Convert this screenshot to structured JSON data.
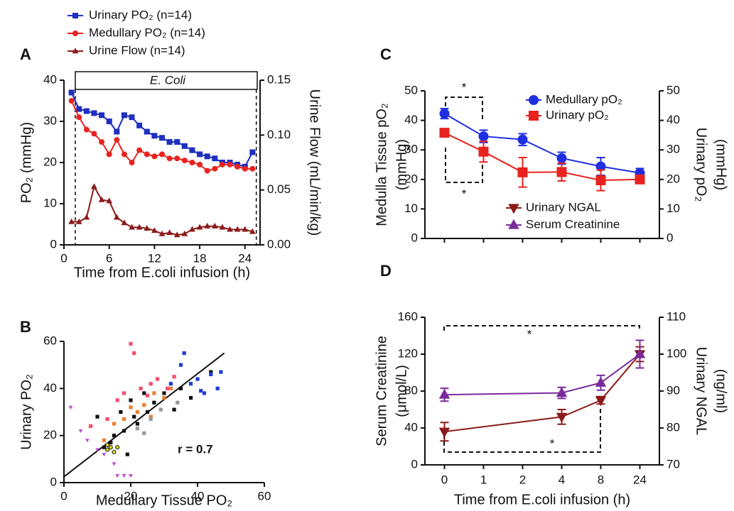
{
  "chart_data": [
    {
      "type": "line",
      "panel": "A",
      "xlabel": "Time from E.coli infusion (h)",
      "ylabel": [
        "PO₂ (mmHg)"
      ],
      "y2label": [
        "Urine Flow (mL/min/kg)"
      ],
      "annotation": "E. Coli",
      "infusion_window": [
        1.5,
        25.5
      ],
      "x": [
        1,
        2,
        3,
        4,
        5,
        6,
        7,
        8,
        9,
        10,
        11,
        12,
        13,
        14,
        15,
        16,
        17,
        18,
        19,
        20,
        21,
        22,
        23,
        24,
        25
      ],
      "xlim": [
        0,
        26
      ],
      "xticks": [
        0,
        6,
        12,
        18,
        24
      ],
      "ylim": [
        0,
        40
      ],
      "yticks": [
        0,
        10,
        20,
        30,
        40
      ],
      "y2lim": [
        0,
        0.15
      ],
      "y2ticks": [
        {
          "value": 0,
          "label": "0.00"
        },
        0.05,
        {
          "value": 0.1,
          "label": "0.10"
        },
        0.15
      ],
      "series": [
        {
          "name": "Urinary PO₂ (n=14)",
          "color": "#1f2fbf",
          "marker": "square",
          "values": [
            37,
            33,
            32.5,
            32,
            31.5,
            30,
            27.5,
            31.5,
            31,
            29,
            27.5,
            26.5,
            26,
            25,
            25,
            24,
            23,
            22,
            21.5,
            21,
            20,
            20,
            19.5,
            19,
            22.5
          ]
        },
        {
          "name": "Medullary PO₂ (n=14)",
          "color": "#e8231f",
          "marker": "circle",
          "values": [
            35,
            31,
            28,
            27,
            25,
            22,
            25.5,
            22,
            20,
            23,
            22,
            21.5,
            22,
            21,
            21,
            20.5,
            20,
            19.5,
            18,
            18.5,
            19.5,
            19.5,
            19,
            18.5,
            18.5
          ]
        },
        {
          "name": "Urine Flow (n=14)",
          "color": "#8b1a1a",
          "marker": "triangle-up",
          "axis": "y2",
          "values": [
            0.021,
            0.021,
            0.025,
            0.053,
            0.041,
            0.04,
            0.025,
            0.02,
            0.016,
            0.016,
            0.015,
            0.013,
            0.01,
            0.011,
            0.009,
            0.01,
            0.014,
            0.016,
            0.017,
            0.017,
            0.016,
            0.014,
            0.014,
            0.014,
            0.012
          ]
        }
      ]
    },
    {
      "type": "scatter",
      "panel": "B",
      "xlabel": "Medullary Tissue PO₂",
      "ylabel": [
        "Urinary PO₂"
      ],
      "annotation": "r = 0.7",
      "xlim": [
        0,
        60
      ],
      "xticks": [
        0,
        20,
        40,
        60
      ],
      "ylim": [
        0,
        60
      ],
      "yticks": [
        0,
        20,
        40,
        60
      ],
      "fit": {
        "x": [
          0,
          48
        ],
        "y": [
          2.5,
          55
        ]
      },
      "series": [
        {
          "color": "#111111",
          "marker": "square",
          "x": [
            10,
            12,
            15,
            17,
            18,
            20,
            22,
            24,
            25,
            27,
            30,
            33,
            35,
            38,
            44,
            14,
            19,
            21
          ],
          "values": [
            28,
            15,
            20,
            30,
            22,
            35,
            25,
            38,
            30,
            34,
            38,
            31,
            40,
            36,
            47,
            17,
            12,
            28
          ]
        },
        {
          "color": "#f0506e",
          "marker": "square",
          "x": [
            8,
            13,
            16,
            18,
            20,
            21,
            23,
            26,
            28,
            31,
            33,
            25
          ],
          "values": [
            24,
            27,
            35,
            38,
            59,
            55,
            40,
            42,
            44,
            40,
            45,
            37
          ]
        },
        {
          "color": "#f07d2d",
          "marker": "square",
          "x": [
            12,
            15,
            18,
            22,
            24,
            27,
            30,
            32,
            20,
            26
          ],
          "values": [
            18,
            25,
            27,
            30,
            33,
            38,
            36,
            40,
            32,
            28
          ]
        },
        {
          "color": "#1e3cdc",
          "marker": "square",
          "x": [
            32,
            35,
            38,
            40,
            42,
            44,
            46,
            47,
            36,
            41
          ],
          "values": [
            42,
            50,
            42,
            44,
            38,
            46,
            40,
            47,
            55,
            39
          ]
        },
        {
          "color": "#c04ccc",
          "marker": "triangle-down",
          "x": [
            2,
            5,
            7,
            10,
            12,
            16,
            18,
            20,
            15
          ],
          "values": [
            32,
            22,
            18,
            14,
            12,
            3,
            3,
            3,
            8
          ]
        },
        {
          "color": "#d8d020",
          "marker": "circle",
          "x": [
            13,
            14,
            15,
            13,
            16
          ],
          "values": [
            14,
            15,
            13,
            16,
            15
          ]
        },
        {
          "color": "#999999",
          "marker": "square",
          "x": [
            22,
            26,
            29,
            34,
            24
          ],
          "values": [
            23,
            27,
            31,
            34,
            21
          ]
        }
      ]
    },
    {
      "type": "line",
      "panel": "C",
      "ylabel": [
        "Medulla Tissue pO₂",
        "(mmHg)"
      ],
      "y2label": [
        "Urinary pO₂",
        "(mmHg)"
      ],
      "annotations": [
        "*",
        "*"
      ],
      "categories": [
        null,
        null,
        null,
        null,
        null,
        null
      ],
      "ylim": [
        0,
        50
      ],
      "yticks": [
        0,
        10,
        20,
        30,
        40,
        50
      ],
      "y2lim": [
        0,
        50
      ],
      "y2ticks": [
        0,
        10,
        20,
        30,
        40,
        50
      ],
      "series": [
        {
          "name": "Medullary pO₂",
          "color": "#1f2fe0",
          "marker": "circle",
          "values": [
            42.3,
            34.6,
            33.5,
            27.2,
            24.4,
            22.2
          ],
          "errors": [
            1.7,
            2.1,
            2,
            2,
            3,
            1.5
          ]
        },
        {
          "name": "Urinary pO₂",
          "color": "#e8231f",
          "marker": "square",
          "axis": "y2",
          "values": [
            35.8,
            29.4,
            22.4,
            22.5,
            19.7,
            20
          ],
          "errors": [
            1.2,
            3.5,
            5,
            3,
            3.5,
            1.3
          ]
        }
      ]
    },
    {
      "type": "line",
      "panel": "D",
      "xlabel": "Time from E.coli infusion (h)",
      "ylabel": [
        "Serum Creatinine",
        "(μmol/L)"
      ],
      "y2label": [
        "Urinary NGAL",
        "(ng/ml)"
      ],
      "annotations": [
        "*",
        "*"
      ],
      "categories": [
        "0",
        "1",
        "2",
        "4",
        "8",
        "24"
      ],
      "ylim": [
        0,
        160
      ],
      "yticks": [
        0,
        40,
        80,
        120,
        160
      ],
      "y2lim": [
        70,
        110
      ],
      "y2ticks": [
        70,
        80,
        90,
        100,
        110
      ],
      "series": [
        {
          "name": "Urinary NGAL",
          "color": "#8b1a1a",
          "marker": "triangle-down",
          "axis": "y2",
          "x": [
            "0",
            "4",
            "8",
            "24"
          ],
          "values": [
            79,
            83,
            87.5,
            100
          ],
          "errors": [
            2.5,
            2,
            1,
            2
          ]
        },
        {
          "name": "Serum Creatinine",
          "color": "#7b2a9b",
          "marker": "triangle-up",
          "x": [
            "0",
            "4",
            "8",
            "24"
          ],
          "values": [
            76,
            78,
            89,
            120
          ],
          "errors": [
            7,
            6,
            8,
            15
          ]
        }
      ]
    }
  ]
}
